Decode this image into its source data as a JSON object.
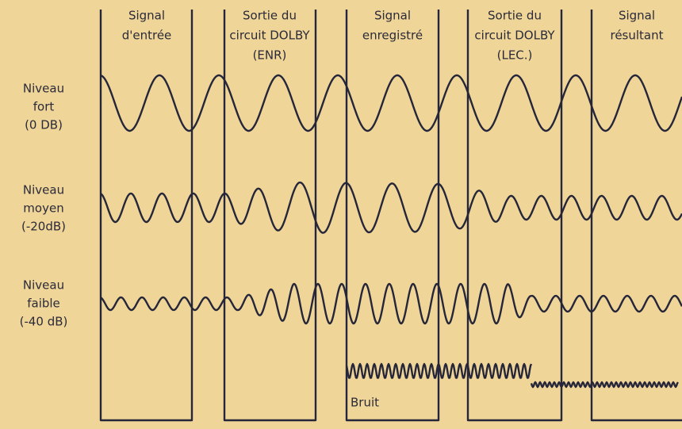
{
  "columns": [
    {
      "lines": [
        "Signal",
        "d'entrée"
      ]
    },
    {
      "lines": [
        "Sortie du",
        "circuit DOLBY",
        "(ENR)"
      ]
    },
    {
      "lines": [
        "Signal",
        "enregistré"
      ]
    },
    {
      "lines": [
        "Sortie du",
        "circuit DOLBY",
        "(LEC.)"
      ]
    },
    {
      "lines": [
        "Signal",
        "résultant"
      ]
    }
  ],
  "rows": [
    {
      "lines": [
        "Niveau",
        "fort",
        "(0 DB)"
      ]
    },
    {
      "lines": [
        "Niveau",
        "moyen",
        "(-20dB)"
      ]
    },
    {
      "lines": [
        "Niveau",
        "faible",
        "(-40 dB)"
      ]
    }
  ],
  "noise_label": "Bruit"
}
